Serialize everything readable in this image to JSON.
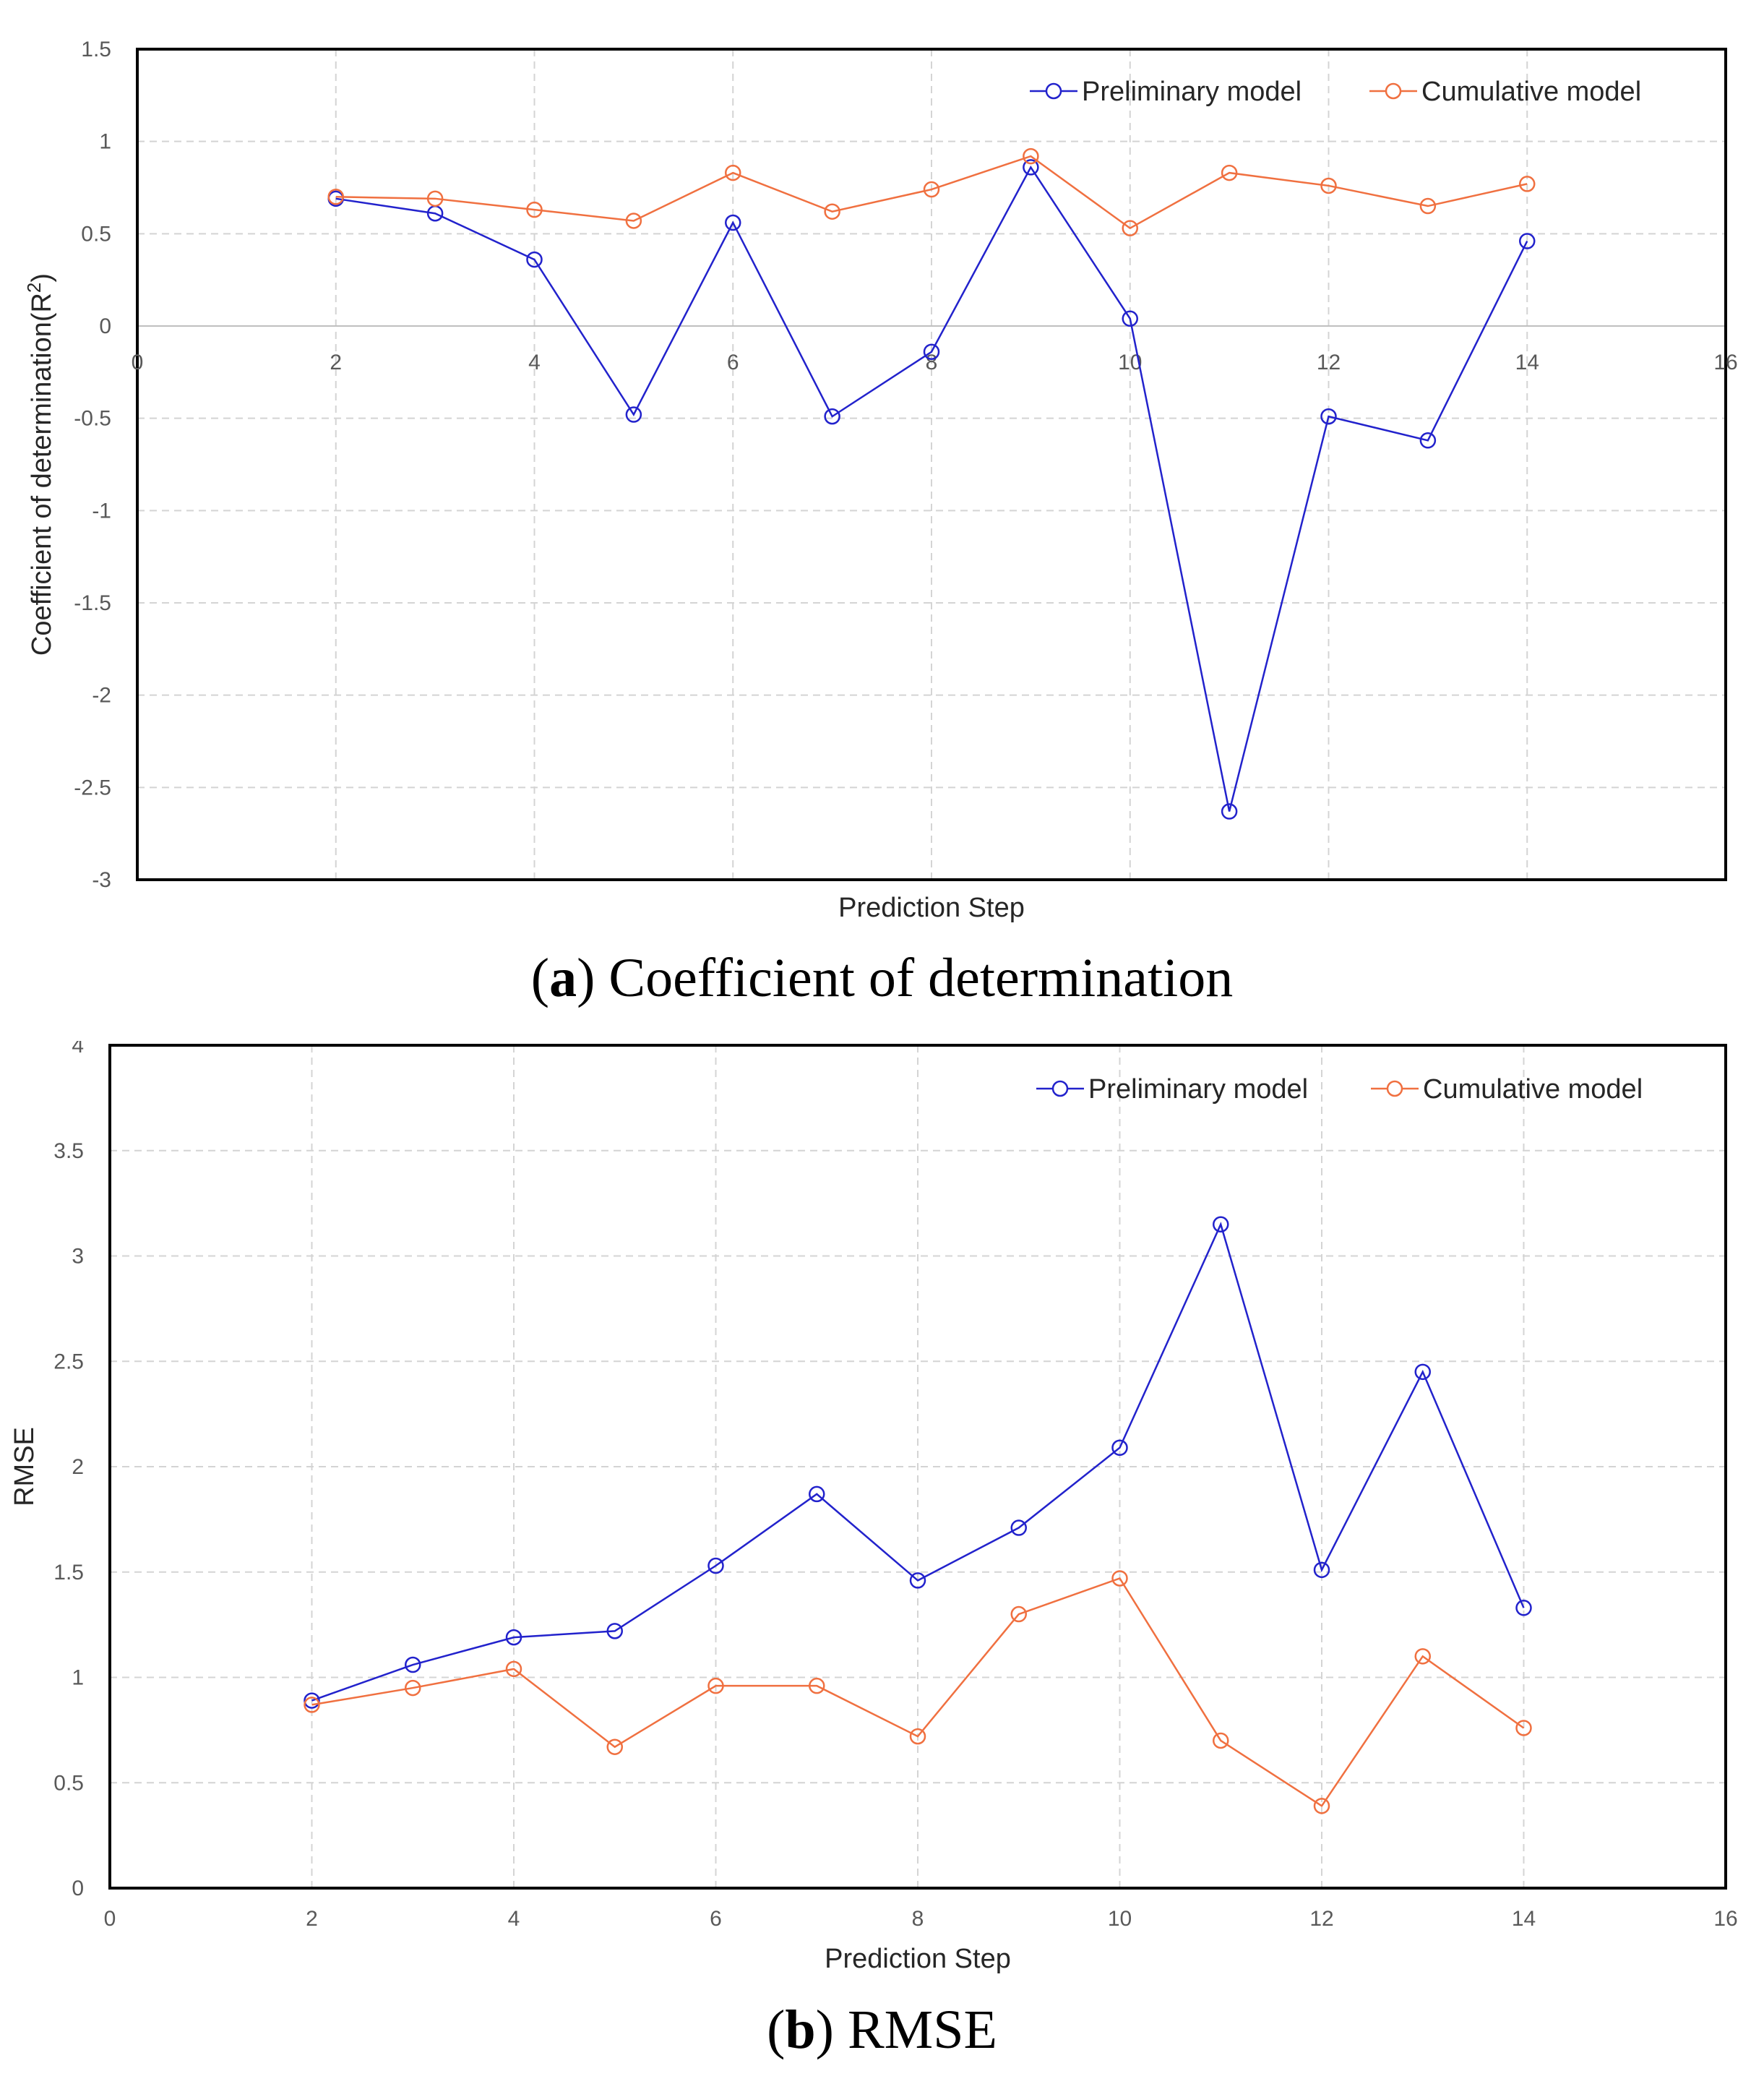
{
  "colors": {
    "preliminary": "#2222cc",
    "cumulative": "#f07040",
    "grid": "#d4d4d4",
    "frame": "#000000"
  },
  "chart_data": [
    {
      "type": "line",
      "title": "",
      "xlabel": "Prediction Step",
      "ylabel": "Coefficient of determination(R",
      "ylabel_sup": "2",
      "ylabel_end": ")",
      "xlim": [
        0,
        16
      ],
      "ylim": [
        -3,
        1.5
      ],
      "xticks": [
        0,
        2,
        4,
        6,
        8,
        10,
        12,
        14,
        16
      ],
      "yticks": [
        1.5,
        1,
        0.5,
        0,
        -0.5,
        -1,
        -1.5,
        -2,
        -2.5,
        -3
      ],
      "x_axis_at": 0,
      "legend_position": "top-right",
      "series": [
        {
          "name": "Preliminary model",
          "color_key": "preliminary",
          "x": [
            2,
            3,
            4,
            5,
            6,
            7,
            8,
            9,
            10,
            11,
            12,
            13,
            14
          ],
          "values": [
            0.69,
            0.61,
            0.36,
            -0.48,
            0.56,
            -0.49,
            -0.14,
            0.86,
            0.04,
            -2.63,
            -0.49,
            -0.62,
            0.46
          ]
        },
        {
          "name": "Cumulative model",
          "color_key": "cumulative",
          "x": [
            2,
            3,
            4,
            5,
            6,
            7,
            8,
            9,
            10,
            11,
            12,
            13,
            14
          ],
          "values": [
            0.7,
            0.69,
            0.63,
            0.57,
            0.83,
            0.62,
            0.74,
            0.92,
            0.53,
            0.83,
            0.76,
            0.65,
            0.77
          ]
        }
      ],
      "caption_letter": "a",
      "caption_text": "Coefficient of determination"
    },
    {
      "type": "line",
      "title": "",
      "xlabel": "Prediction Step",
      "ylabel": "RMSE",
      "ylabel_sup": "",
      "ylabel_end": "",
      "xlim": [
        0,
        16
      ],
      "ylim": [
        0,
        4
      ],
      "xticks": [
        0,
        2,
        4,
        6,
        8,
        10,
        12,
        14,
        16
      ],
      "yticks": [
        4,
        3.5,
        3,
        2.5,
        2,
        1.5,
        1,
        0.5,
        0
      ],
      "x_axis_at": 0,
      "legend_position": "top-right",
      "series": [
        {
          "name": "Preliminary model",
          "color_key": "preliminary",
          "x": [
            2,
            3,
            4,
            5,
            6,
            7,
            8,
            9,
            10,
            11,
            12,
            13,
            14
          ],
          "values": [
            0.89,
            1.06,
            1.19,
            1.22,
            1.53,
            1.87,
            1.46,
            1.71,
            2.09,
            3.15,
            1.51,
            2.45,
            1.33
          ]
        },
        {
          "name": "Cumulative model",
          "color_key": "cumulative",
          "x": [
            2,
            3,
            4,
            5,
            6,
            7,
            8,
            9,
            10,
            11,
            12,
            13,
            14
          ],
          "values": [
            0.87,
            0.95,
            1.04,
            0.67,
            0.96,
            0.96,
            0.72,
            1.3,
            1.47,
            0.7,
            0.39,
            1.1,
            0.76
          ]
        }
      ],
      "caption_letter": "b",
      "caption_text": "RMSE"
    }
  ]
}
